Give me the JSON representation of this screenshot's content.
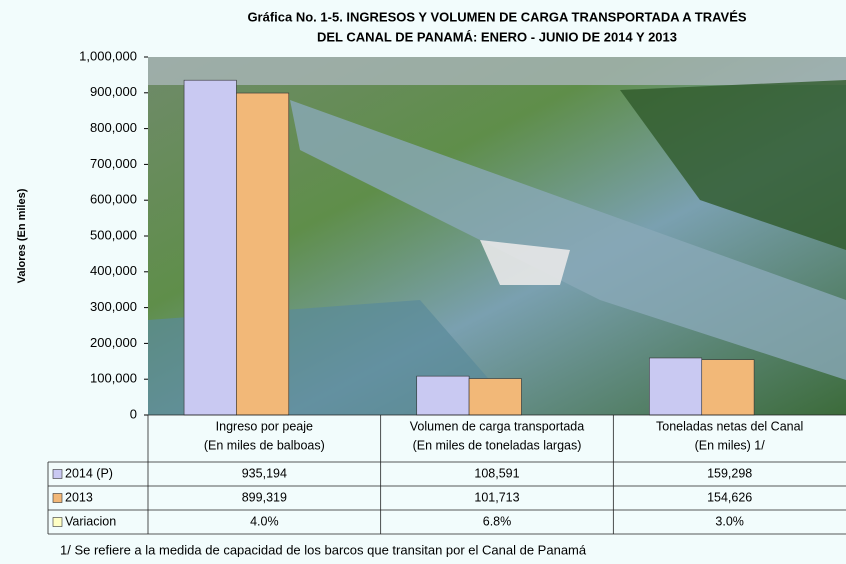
{
  "chart_data": {
    "type": "bar",
    "title": [
      "Gráfica No. 1-5.  INGRESOS Y VOLUMEN DE CARGA TRANSPORTADA A TRAVÉS",
      "DEL CANAL DE PANAMÁ:  ENERO - JUNIO DE 2014 Y 2013"
    ],
    "y_label": "Valores (En miles)",
    "categories": [
      [
        "Ingreso por peaje",
        "(En miles de balboas)"
      ],
      [
        "Volumen de carga transportada",
        "(En miles de toneladas largas)"
      ],
      [
        "Toneladas netas del Canal",
        "(En miles) 1/"
      ]
    ],
    "series": [
      {
        "name": "2014 (P)",
        "color": "#c9c9f2",
        "values": [
          935194,
          108591,
          159298
        ],
        "value_labels": [
          "935,194",
          "108,591",
          "159,298"
        ]
      },
      {
        "name": "2013",
        "color": "#f2b878",
        "values": [
          899319,
          101713,
          154626
        ],
        "value_labels": [
          "899,319",
          "101,713",
          "154,626"
        ]
      }
    ],
    "variation": {
      "name": "Variacion",
      "color": "#ffffc4",
      "values": [
        4.0,
        6.8,
        3.0
      ],
      "value_labels": [
        "4.0%",
        "6.8%",
        "3.0%"
      ]
    },
    "ylim": [
      0,
      1000000
    ],
    "yticks": [
      0,
      {
        "value": 100000,
        "label": "100,000"
      },
      {
        "value": 200000,
        "label": "200,000"
      },
      {
        "value": 300000,
        "label": "300,000"
      },
      {
        "value": 400000,
        "label": "400,000"
      },
      {
        "value": 500000,
        "label": "500,000"
      },
      {
        "value": 600000,
        "label": "600,000"
      },
      {
        "value": 700000,
        "label": "700,000"
      },
      {
        "value": 800000,
        "label": "800,000"
      },
      {
        "value": 900000,
        "label": "900,000"
      },
      {
        "value": 1000000,
        "label": "1,000,000"
      }
    ],
    "footnote": "1/  Se refiere a la medida de capacidad de los barcos que transitan por el Canal de Panamá"
  }
}
